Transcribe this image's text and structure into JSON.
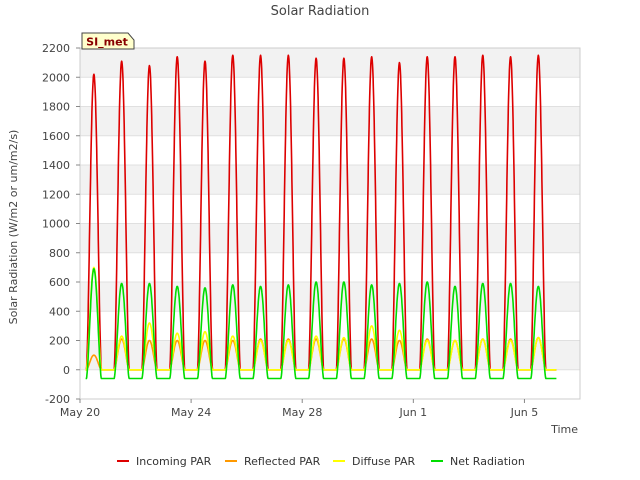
{
  "chart_data": {
    "type": "line",
    "title": "Solar Radiation",
    "xlabel": "Time",
    "ylabel": "Solar Radiation (W/m2 or um/m2/s)",
    "site_label": "SI_met",
    "ylim": [
      -200,
      2200
    ],
    "y_ticks": [
      -200,
      0,
      200,
      400,
      600,
      800,
      1000,
      1200,
      1400,
      1600,
      1800,
      2000,
      2200
    ],
    "xlim_days": [
      0,
      18
    ],
    "x_ticks": [
      {
        "day": 0,
        "label": "May 20"
      },
      {
        "day": 4,
        "label": "May 24"
      },
      {
        "day": 8,
        "label": "May 28"
      },
      {
        "day": 12,
        "label": "Jun 1"
      },
      {
        "day": 16,
        "label": "Jun 5"
      }
    ],
    "days": [
      0.5,
      1.5,
      2.5,
      3.5,
      4.5,
      5.5,
      6.5,
      7.5,
      8.5,
      9.5,
      10.5,
      11.5,
      12.5,
      13.5,
      14.5,
      15.5,
      16.5
    ],
    "series": [
      {
        "name": "Incoming PAR",
        "color": "#dd0000",
        "daily_peak": [
          2020,
          2110,
          2080,
          2140,
          2110,
          2150,
          2150,
          2150,
          2130,
          2130,
          2140,
          2100,
          2140,
          2140,
          2150,
          2140,
          2150
        ],
        "night": 0
      },
      {
        "name": "Reflected PAR",
        "color": "#ff9900",
        "daily_peak": [
          100,
          210,
          200,
          200,
          200,
          200,
          210,
          210,
          210,
          210,
          210,
          200,
          210,
          200,
          210,
          210,
          220
        ],
        "night": 0
      },
      {
        "name": "Diffuse PAR",
        "color": "#ffff00",
        "daily_peak": [
          700,
          230,
          320,
          250,
          260,
          230,
          200,
          200,
          230,
          220,
          300,
          270,
          200,
          200,
          210,
          200,
          220
        ],
        "night": 0
      },
      {
        "name": "Net Radiation",
        "color": "#00dd00",
        "daily_peak": [
          690,
          590,
          590,
          570,
          560,
          580,
          570,
          580,
          600,
          600,
          580,
          590,
          600,
          570,
          590,
          590,
          570
        ],
        "night": -60
      }
    ]
  }
}
